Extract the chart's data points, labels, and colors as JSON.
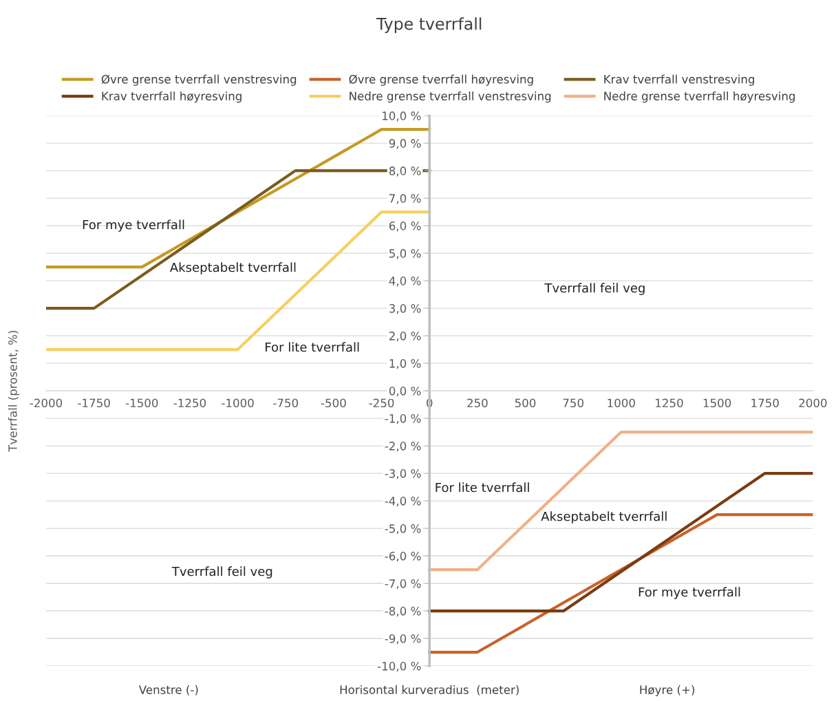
{
  "chart_data": {
    "type": "line",
    "title": "Type tverrfall",
    "xlabel": "Horisontal kurveradius  (meter)",
    "ylabel": "Tverrfall (prosent, %)",
    "series": [
      {
        "name": "Øvre grense tverrfall venstresving",
        "color": "#c49a22",
        "x": [
          -2000,
          -1500,
          -250,
          0
        ],
        "values": [
          4.5,
          4.5,
          9.5,
          9.5
        ]
      },
      {
        "name": "Øvre grense tverrfall høyresving",
        "color": "#c8622a",
        "x": [
          0,
          250,
          1500,
          2000
        ],
        "values": [
          -9.5,
          -9.5,
          -4.5,
          -4.5
        ]
      },
      {
        "name": "Krav tverrfall venstresving",
        "color": "#7a5c1e",
        "x": [
          -2000,
          -1750,
          -700,
          0
        ],
        "values": [
          3,
          3,
          8,
          8
        ]
      },
      {
        "name": "Krav tverrfall høyresving",
        "color": "#7a3c12",
        "x": [
          0,
          700,
          1750,
          2000
        ],
        "values": [
          -8,
          -8,
          -3,
          -3
        ]
      },
      {
        "name": "Nedre grense tverrfall venstresving",
        "color": "#f5d060",
        "x": [
          -2000,
          -1000,
          -250,
          0
        ],
        "values": [
          1.5,
          1.5,
          6.5,
          6.5
        ]
      },
      {
        "name": "Nedre grense tverrfall høyresving",
        "color": "#f0b088",
        "x": [
          0,
          250,
          1000,
          2000
        ],
        "values": [
          -6.5,
          -6.5,
          -1.5,
          -1.5
        ]
      }
    ],
    "xlim": [
      -2000,
      2000
    ],
    "xticks": [
      -2000,
      -1750,
      -1500,
      -1250,
      -1000,
      -750,
      -500,
      -250,
      0,
      250,
      500,
      750,
      1000,
      1250,
      1500,
      1750,
      2000
    ],
    "ylim": [
      -10,
      10
    ],
    "yticks": [
      {
        "value": -10,
        "label": "-10,0 %"
      },
      {
        "value": -9,
        "label": "-9,0 %"
      },
      {
        "value": -8,
        "label": "-8,0 %"
      },
      {
        "value": -7,
        "label": "-7,0 %"
      },
      {
        "value": -6,
        "label": "-6,0 %"
      },
      {
        "value": -5,
        "label": "-5,0 %"
      },
      {
        "value": -4,
        "label": "-4,0 %"
      },
      {
        "value": -3,
        "label": "-3,0 %"
      },
      {
        "value": -2,
        "label": "-2,0 %"
      },
      {
        "value": -1,
        "label": "-1,0 %"
      },
      {
        "value": 0,
        "label": "0,0 %"
      },
      {
        "value": 1,
        "label": "1,0 %"
      },
      {
        "value": 2,
        "label": "2,0 %"
      },
      {
        "value": 3,
        "label": "3,0 %"
      },
      {
        "value": 4,
        "label": "4,0 %"
      },
      {
        "value": 5,
        "label": "5,0 %"
      },
      {
        "value": 6,
        "label": "6,0 %"
      },
      {
        "value": 7,
        "label": "7,0 %"
      },
      {
        "value": 8,
        "label": "8,0 %"
      },
      {
        "value": 9,
        "label": "9,0 %"
      },
      {
        "value": 10,
        "label": "10,0 %"
      }
    ],
    "grid": "y",
    "legend": "top",
    "marker": "none",
    "line_style": "solid",
    "annotations": [
      "For mye tverrfall",
      "Akseptabelt tverrfall",
      "For lite tverrfall",
      "Tverrfall feil veg",
      "For lite tverrfall",
      "Akseptabelt tverrfall",
      "For mye tverrfall",
      "Tverrfall feil veg",
      "Venstre (-)",
      "Høyre (+)"
    ]
  }
}
